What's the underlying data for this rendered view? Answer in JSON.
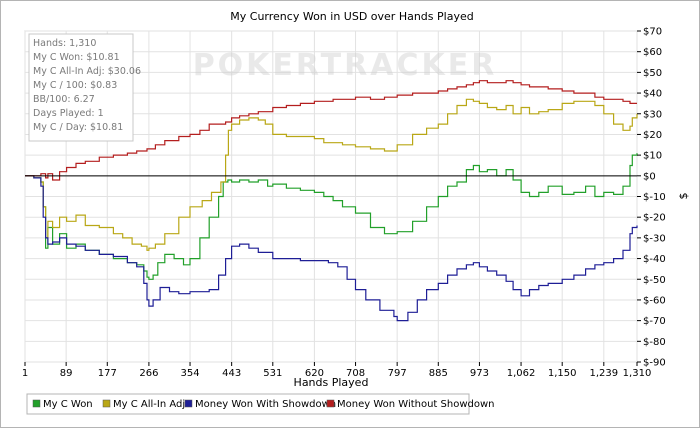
{
  "chart_data": {
    "type": "line",
    "title": "My Currency Won in USD over Hands Played",
    "xlabel": "Hands Played",
    "ylabel": "$",
    "xlim": [
      1,
      1310
    ],
    "ylim": [
      -90,
      70
    ],
    "x_ticks": [
      "1",
      "89",
      "177",
      "266",
      "354",
      "443",
      "531",
      "620",
      "708",
      "797",
      "885",
      "973",
      "1,062",
      "1,150",
      "1,239",
      "1,310"
    ],
    "x_tick_values": [
      1,
      89,
      177,
      266,
      354,
      443,
      531,
      620,
      708,
      797,
      885,
      973,
      1062,
      1150,
      1239,
      1310
    ],
    "y_ticks": [
      "$70",
      "$60",
      "$50",
      "$40",
      "$30",
      "$20",
      "$10",
      "$0",
      "$-10",
      "$-20",
      "$-30",
      "$-40",
      "$-50",
      "$-60",
      "$-70",
      "$-80",
      "$-90"
    ],
    "y_tick_values": [
      70,
      60,
      50,
      40,
      30,
      20,
      10,
      0,
      -10,
      -20,
      -30,
      -40,
      -50,
      -60,
      -70,
      -80,
      -90
    ],
    "grid": true,
    "legend_position": "bottom",
    "watermark": "POKERTRACKER",
    "stats": [
      "Hands: 1,310",
      "My C Won: $10.81",
      "My C All-In Adj: $30.06",
      "My C / 100: $0.83",
      "BB/100: 6.27",
      "Days Played: 1",
      "My C / Day: $10.81"
    ],
    "series": [
      {
        "name": "My C Won",
        "color": "#22a02a",
        "points": [
          [
            1,
            0
          ],
          [
            20,
            -1
          ],
          [
            35,
            -3
          ],
          [
            40,
            -15
          ],
          [
            45,
            -35
          ],
          [
            50,
            -25
          ],
          [
            60,
            -33
          ],
          [
            75,
            -28
          ],
          [
            90,
            -35
          ],
          [
            110,
            -33
          ],
          [
            130,
            -36
          ],
          [
            160,
            -38
          ],
          [
            190,
            -40
          ],
          [
            220,
            -42
          ],
          [
            240,
            -43
          ],
          [
            255,
            -46
          ],
          [
            262,
            -49
          ],
          [
            266,
            -50
          ],
          [
            275,
            -48
          ],
          [
            285,
            -42
          ],
          [
            300,
            -38
          ],
          [
            320,
            -40
          ],
          [
            340,
            -43
          ],
          [
            354,
            -40
          ],
          [
            375,
            -30
          ],
          [
            395,
            -20
          ],
          [
            415,
            -10
          ],
          [
            425,
            -3
          ],
          [
            435,
            -2
          ],
          [
            443,
            -3
          ],
          [
            460,
            -2
          ],
          [
            480,
            -3
          ],
          [
            500,
            -2
          ],
          [
            520,
            -5
          ],
          [
            531,
            -4
          ],
          [
            560,
            -6
          ],
          [
            590,
            -7
          ],
          [
            620,
            -8
          ],
          [
            640,
            -10
          ],
          [
            660,
            -12
          ],
          [
            680,
            -15
          ],
          [
            708,
            -18
          ],
          [
            740,
            -25
          ],
          [
            770,
            -28
          ],
          [
            797,
            -27
          ],
          [
            830,
            -22
          ],
          [
            860,
            -15
          ],
          [
            885,
            -10
          ],
          [
            905,
            -5
          ],
          [
            925,
            -3
          ],
          [
            945,
            3
          ],
          [
            960,
            5
          ],
          [
            973,
            2
          ],
          [
            990,
            3
          ],
          [
            1010,
            0
          ],
          [
            1030,
            3
          ],
          [
            1045,
            -2
          ],
          [
            1062,
            -8
          ],
          [
            1080,
            -10
          ],
          [
            1100,
            -8
          ],
          [
            1120,
            -5
          ],
          [
            1150,
            -9
          ],
          [
            1175,
            -8
          ],
          [
            1200,
            -5
          ],
          [
            1220,
            -10
          ],
          [
            1239,
            -8
          ],
          [
            1260,
            -9
          ],
          [
            1280,
            -5
          ],
          [
            1295,
            5
          ],
          [
            1300,
            10
          ],
          [
            1310,
            11
          ]
        ]
      },
      {
        "name": "My C All-In Adj",
        "color": "#b9a716",
        "points": [
          [
            1,
            0
          ],
          [
            20,
            -1
          ],
          [
            35,
            -3
          ],
          [
            40,
            -15
          ],
          [
            45,
            -30
          ],
          [
            50,
            -22
          ],
          [
            60,
            -25
          ],
          [
            75,
            -20
          ],
          [
            90,
            -22
          ],
          [
            110,
            -19
          ],
          [
            130,
            -24
          ],
          [
            160,
            -25
          ],
          [
            190,
            -28
          ],
          [
            210,
            -30
          ],
          [
            230,
            -33
          ],
          [
            250,
            -34
          ],
          [
            262,
            -36
          ],
          [
            266,
            -35
          ],
          [
            280,
            -33
          ],
          [
            300,
            -28
          ],
          [
            330,
            -20
          ],
          [
            354,
            -15
          ],
          [
            380,
            -12
          ],
          [
            400,
            -8
          ],
          [
            420,
            -3
          ],
          [
            430,
            10
          ],
          [
            436,
            22
          ],
          [
            443,
            25
          ],
          [
            460,
            27
          ],
          [
            480,
            28
          ],
          [
            500,
            27
          ],
          [
            515,
            25
          ],
          [
            531,
            20
          ],
          [
            560,
            19
          ],
          [
            590,
            19
          ],
          [
            620,
            18
          ],
          [
            640,
            16
          ],
          [
            660,
            16
          ],
          [
            680,
            15
          ],
          [
            708,
            14
          ],
          [
            740,
            13
          ],
          [
            770,
            12
          ],
          [
            797,
            15
          ],
          [
            830,
            20
          ],
          [
            860,
            23
          ],
          [
            885,
            25
          ],
          [
            905,
            30
          ],
          [
            925,
            34
          ],
          [
            945,
            37
          ],
          [
            960,
            36
          ],
          [
            973,
            35
          ],
          [
            990,
            33
          ],
          [
            1010,
            32
          ],
          [
            1030,
            34
          ],
          [
            1045,
            30
          ],
          [
            1062,
            33
          ],
          [
            1080,
            30
          ],
          [
            1100,
            31
          ],
          [
            1120,
            32
          ],
          [
            1150,
            35
          ],
          [
            1175,
            36
          ],
          [
            1200,
            36
          ],
          [
            1220,
            34
          ],
          [
            1239,
            30
          ],
          [
            1260,
            25
          ],
          [
            1280,
            22
          ],
          [
            1295,
            24
          ],
          [
            1300,
            28
          ],
          [
            1310,
            30
          ]
        ]
      },
      {
        "name": "Money Won With Showdown",
        "color": "#1e1e96",
        "points": [
          [
            1,
            0
          ],
          [
            20,
            -1
          ],
          [
            35,
            -5
          ],
          [
            40,
            -20
          ],
          [
            45,
            -30
          ],
          [
            50,
            -33
          ],
          [
            60,
            -32
          ],
          [
            75,
            -30
          ],
          [
            90,
            -33
          ],
          [
            110,
            -34
          ],
          [
            130,
            -36
          ],
          [
            160,
            -38
          ],
          [
            190,
            -39
          ],
          [
            220,
            -42
          ],
          [
            240,
            -44
          ],
          [
            255,
            -52
          ],
          [
            262,
            -60
          ],
          [
            266,
            -63
          ],
          [
            275,
            -60
          ],
          [
            290,
            -54
          ],
          [
            310,
            -56
          ],
          [
            330,
            -57
          ],
          [
            354,
            -56
          ],
          [
            375,
            -56
          ],
          [
            395,
            -55
          ],
          [
            415,
            -48
          ],
          [
            430,
            -40
          ],
          [
            443,
            -34
          ],
          [
            460,
            -33
          ],
          [
            480,
            -35
          ],
          [
            500,
            -37
          ],
          [
            531,
            -40
          ],
          [
            560,
            -40
          ],
          [
            590,
            -41
          ],
          [
            620,
            -41
          ],
          [
            650,
            -42
          ],
          [
            670,
            -44
          ],
          [
            690,
            -50
          ],
          [
            708,
            -55
          ],
          [
            730,
            -60
          ],
          [
            760,
            -65
          ],
          [
            790,
            -68
          ],
          [
            797,
            -70
          ],
          [
            820,
            -66
          ],
          [
            840,
            -60
          ],
          [
            860,
            -55
          ],
          [
            885,
            -52
          ],
          [
            905,
            -48
          ],
          [
            925,
            -45
          ],
          [
            945,
            -43
          ],
          [
            960,
            -42
          ],
          [
            973,
            -44
          ],
          [
            990,
            -46
          ],
          [
            1010,
            -48
          ],
          [
            1030,
            -51
          ],
          [
            1045,
            -55
          ],
          [
            1062,
            -58
          ],
          [
            1080,
            -55
          ],
          [
            1100,
            -53
          ],
          [
            1120,
            -52
          ],
          [
            1150,
            -50
          ],
          [
            1175,
            -48
          ],
          [
            1200,
            -45
          ],
          [
            1220,
            -43
          ],
          [
            1239,
            -42
          ],
          [
            1260,
            -40
          ],
          [
            1280,
            -36
          ],
          [
            1295,
            -28
          ],
          [
            1300,
            -25
          ],
          [
            1310,
            -24
          ]
        ]
      },
      {
        "name": "Money Won Without Showdown",
        "color": "#b41e1e",
        "points": [
          [
            1,
            0
          ],
          [
            20,
            0
          ],
          [
            35,
            1
          ],
          [
            45,
            -1
          ],
          [
            50,
            1
          ],
          [
            60,
            -2
          ],
          [
            75,
            2
          ],
          [
            90,
            4
          ],
          [
            110,
            6
          ],
          [
            130,
            7
          ],
          [
            160,
            9
          ],
          [
            190,
            10
          ],
          [
            220,
            11
          ],
          [
            240,
            12
          ],
          [
            262,
            13
          ],
          [
            266,
            13
          ],
          [
            280,
            15
          ],
          [
            300,
            17
          ],
          [
            330,
            19
          ],
          [
            354,
            20
          ],
          [
            375,
            22
          ],
          [
            395,
            25
          ],
          [
            415,
            25
          ],
          [
            430,
            26
          ],
          [
            443,
            28
          ],
          [
            460,
            29
          ],
          [
            480,
            30
          ],
          [
            500,
            31
          ],
          [
            531,
            33
          ],
          [
            560,
            34
          ],
          [
            590,
            35
          ],
          [
            620,
            36
          ],
          [
            640,
            36
          ],
          [
            660,
            37
          ],
          [
            680,
            37
          ],
          [
            708,
            38
          ],
          [
            740,
            37
          ],
          [
            770,
            38
          ],
          [
            797,
            39
          ],
          [
            830,
            40
          ],
          [
            860,
            40
          ],
          [
            885,
            41
          ],
          [
            905,
            42
          ],
          [
            925,
            43
          ],
          [
            945,
            44
          ],
          [
            960,
            45
          ],
          [
            973,
            46
          ],
          [
            990,
            45
          ],
          [
            1010,
            45
          ],
          [
            1030,
            46
          ],
          [
            1045,
            45
          ],
          [
            1062,
            44
          ],
          [
            1080,
            43
          ],
          [
            1100,
            43
          ],
          [
            1120,
            42
          ],
          [
            1150,
            41
          ],
          [
            1175,
            40
          ],
          [
            1200,
            40
          ],
          [
            1220,
            38
          ],
          [
            1239,
            37
          ],
          [
            1260,
            37
          ],
          [
            1280,
            36
          ],
          [
            1295,
            35
          ],
          [
            1300,
            35
          ],
          [
            1310,
            35
          ]
        ]
      }
    ]
  }
}
